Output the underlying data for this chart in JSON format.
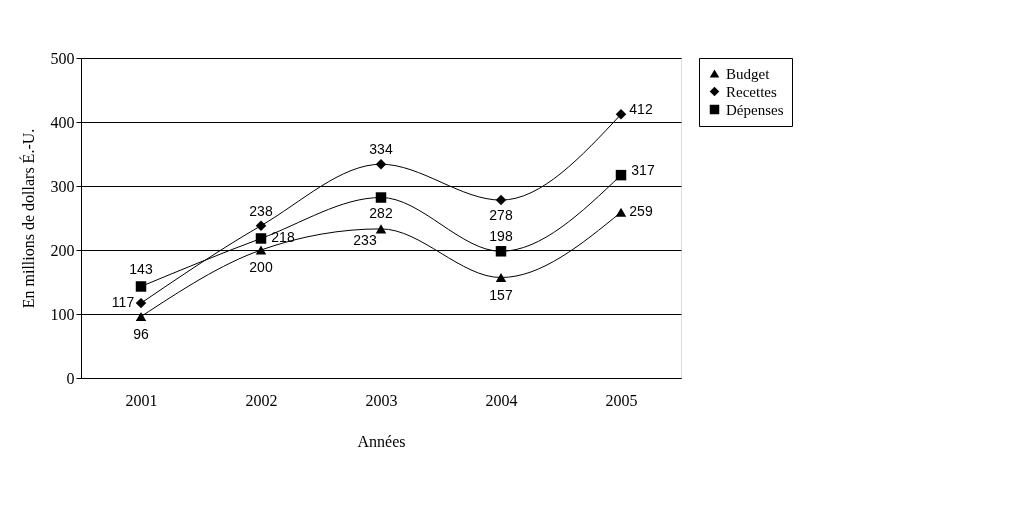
{
  "chart_data": {
    "type": "line",
    "xlabel": "Années",
    "ylabel": "En millions de dollars É.-U.",
    "categories": [
      "2001",
      "2002",
      "2003",
      "2004",
      "2005"
    ],
    "series": [
      {
        "name": "Budget",
        "color": "#000000",
        "marker": "triangle",
        "values": [
          96,
          200,
          233,
          157,
          259
        ]
      },
      {
        "name": "Recettes",
        "color": "#000000",
        "marker": "diamond",
        "values": [
          117,
          238,
          334,
          278,
          412
        ]
      },
      {
        "name": "Dépenses",
        "color": "#000000",
        "marker": "square",
        "values": [
          143,
          218,
          282,
          198,
          317
        ]
      }
    ],
    "ylim": [
      0,
      500
    ],
    "yticks": [
      0,
      100,
      200,
      300,
      400,
      500
    ],
    "grid": "y",
    "legend": "right",
    "data_labels": true,
    "line_style": "solid"
  }
}
